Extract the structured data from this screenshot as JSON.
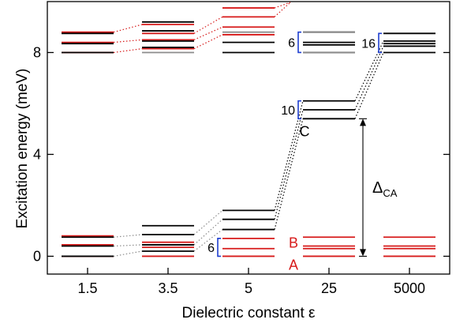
{
  "chart_data": {
    "type": "level-diagram",
    "title": "",
    "xlabel": "Dielectric constant ε",
    "ylabel": "Excitation energy  (meV)",
    "ylim": [
      -0.7,
      10
    ],
    "yticks": [
      0,
      4,
      8
    ],
    "categories": [
      "1.5",
      "3.5",
      "5",
      "25",
      "5000"
    ],
    "colors": {
      "red": "#d71a1a",
      "black": "#000000",
      "gray": "#8c8c8c",
      "blue": "#1f3fd0"
    },
    "levels": [
      {
        "category": "1.5",
        "color": "red",
        "values": [
          0.0,
          0.45,
          0.8,
          8.0,
          8.4,
          8.8
        ]
      },
      {
        "category": "1.5",
        "color": "black",
        "values": [
          0.0,
          0.4,
          0.75,
          8.0,
          8.35,
          8.75
        ]
      },
      {
        "category": "3.5",
        "color": "red",
        "values": [
          0.0,
          0.35,
          0.55,
          8.15,
          8.5,
          8.75,
          9.1
        ]
      },
      {
        "category": "3.5",
        "color": "black",
        "values": [
          0.2,
          0.45,
          0.85,
          1.2,
          8.2,
          8.45,
          8.85,
          9.2
        ]
      },
      {
        "category": "3.5",
        "color": "gray",
        "values": [
          8.0
        ]
      },
      {
        "category": "5",
        "color": "red",
        "values": [
          0.0,
          0.3,
          0.7,
          8.7,
          9.0,
          9.4,
          9.75
        ]
      },
      {
        "category": "5",
        "color": "black",
        "values": [
          1.05,
          1.45,
          1.8,
          8.0,
          8.4
        ]
      },
      {
        "category": "5",
        "color": "gray",
        "values": [
          8.8
        ]
      },
      {
        "category": "25",
        "color": "red",
        "values": [
          0.0,
          0.3,
          0.4,
          0.75
        ]
      },
      {
        "category": "25",
        "color": "black",
        "values": [
          5.4,
          5.75,
          6.1,
          8.0,
          8.3,
          8.4,
          8.8
        ]
      },
      {
        "category": "25",
        "color": "gray",
        "values": [
          8.0,
          8.8
        ]
      },
      {
        "category": "5000",
        "color": "red",
        "values": [
          0.0,
          0.3,
          0.4,
          0.75
        ]
      },
      {
        "category": "5000",
        "color": "black",
        "values": [
          8.0,
          8.25,
          8.35,
          8.45,
          8.75
        ]
      }
    ],
    "annotations": {
      "bracket_labels": [
        {
          "text": "6",
          "category": "5",
          "range": [
            0.0,
            0.7
          ]
        },
        {
          "text": "10",
          "category": "25",
          "range": [
            5.4,
            6.1
          ]
        },
        {
          "text": "6",
          "category": "25",
          "range": [
            8.0,
            8.8
          ]
        },
        {
          "text": "16",
          "category": "5000",
          "range": [
            8.0,
            8.75
          ]
        }
      ],
      "level_labels": [
        {
          "text": "A",
          "color": "red",
          "value": 0.0
        },
        {
          "text": "B",
          "color": "red",
          "value": 0.4
        },
        {
          "text": "C",
          "color": "black",
          "value": 5.4
        }
      ],
      "gap_label": {
        "main": "Δ",
        "sub": "CA",
        "from": 0.0,
        "to": 5.4
      }
    }
  }
}
